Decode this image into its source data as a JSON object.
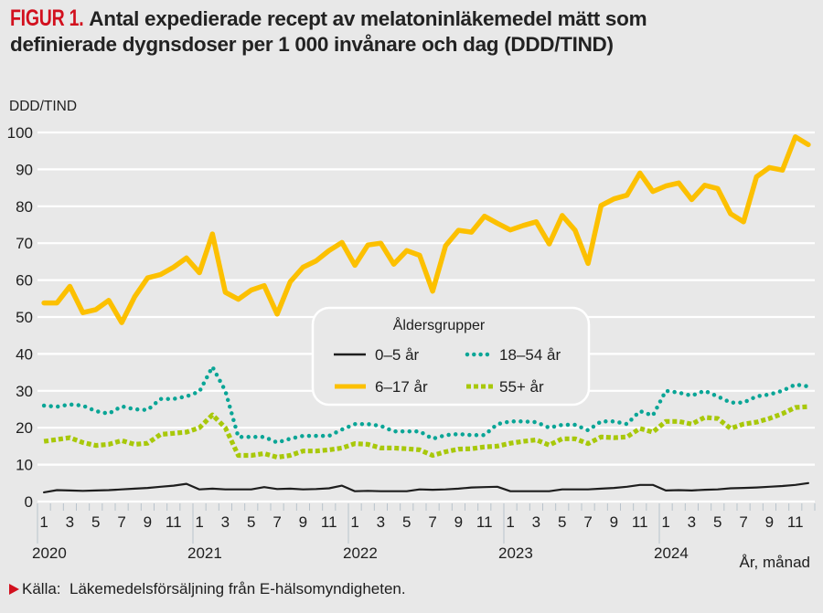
{
  "figure": {
    "label": "FIGUR 1.",
    "title_line1": "Antal expedierade recept av melatoninläkemedel mätt som",
    "title_line2": "definierade dygnsdoser per 1 000 invånare och dag (DDD/TIND)",
    "source_label": "Källa:",
    "source_text": "Läkemedelsförsäljning från E-hälsomyndigheten."
  },
  "chart_data": {
    "type": "line",
    "title": "Antal expedierade recept av melatoninläkemedel mätt som definierade dygnsdoser per 1 000 invånare och dag (DDD/TIND)",
    "ylabel": "DDD/TIND",
    "xlabel": "År, månad",
    "ylim": [
      0,
      100
    ],
    "yticks": [
      0,
      10,
      20,
      30,
      40,
      50,
      60,
      70,
      80,
      90,
      100
    ],
    "grid": true,
    "years": [
      "2020",
      "2021",
      "2022",
      "2023",
      "2024"
    ],
    "month_tick_labels": [
      "1",
      "3",
      "5",
      "7",
      "9",
      "11"
    ],
    "x": [
      "2020-01",
      "2020-02",
      "2020-03",
      "2020-04",
      "2020-05",
      "2020-06",
      "2020-07",
      "2020-08",
      "2020-09",
      "2020-10",
      "2020-11",
      "2020-12",
      "2021-01",
      "2021-02",
      "2021-03",
      "2021-04",
      "2021-05",
      "2021-06",
      "2021-07",
      "2021-08",
      "2021-09",
      "2021-10",
      "2021-11",
      "2021-12",
      "2022-01",
      "2022-02",
      "2022-03",
      "2022-04",
      "2022-05",
      "2022-06",
      "2022-07",
      "2022-08",
      "2022-09",
      "2022-10",
      "2022-11",
      "2022-12",
      "2023-01",
      "2023-02",
      "2023-03",
      "2023-04",
      "2023-05",
      "2023-06",
      "2023-07",
      "2023-08",
      "2023-09",
      "2023-10",
      "2023-11",
      "2023-12",
      "2024-01",
      "2024-02",
      "2024-03",
      "2024-04",
      "2024-05",
      "2024-06",
      "2024-07",
      "2024-08",
      "2024-09",
      "2024-10",
      "2024-11",
      "2024-12"
    ],
    "legend": {
      "title": "Åldersgrupper",
      "placement": "center"
    },
    "series": [
      {
        "name": "0–5 år",
        "color": "#1e1e1e",
        "style": "solid-thin",
        "values": [
          2.5,
          3.1,
          3.0,
          2.9,
          3.0,
          3.1,
          3.3,
          3.5,
          3.7,
          4.0,
          4.3,
          4.8,
          3.3,
          3.5,
          3.3,
          3.3,
          3.3,
          3.9,
          3.4,
          3.5,
          3.3,
          3.4,
          3.6,
          4.3,
          2.8,
          2.9,
          2.8,
          2.8,
          2.8,
          3.3,
          3.2,
          3.3,
          3.5,
          3.8,
          3.9,
          4.0,
          2.8,
          2.8,
          2.8,
          2.8,
          3.3,
          3.3,
          3.3,
          3.5,
          3.7,
          4.0,
          4.5,
          4.5,
          3.0,
          3.1,
          3.0,
          3.2,
          3.3,
          3.6,
          3.7,
          3.8,
          4.0,
          4.2,
          4.5,
          5.0
        ]
      },
      {
        "name": "6–17 år",
        "color": "#fcc000",
        "style": "solid-thick",
        "values": [
          53.8,
          53.8,
          58.3,
          51.2,
          52.0,
          54.5,
          48.5,
          55.5,
          60.6,
          61.5,
          63.5,
          66.0,
          62.0,
          72.5,
          56.7,
          54.8,
          57.3,
          58.5,
          50.8,
          59.5,
          63.5,
          65.2,
          68.0,
          70.2,
          64.0,
          69.5,
          70.0,
          64.3,
          68.0,
          66.7,
          57.0,
          69.3,
          73.5,
          73.0,
          77.3,
          75.4,
          73.6,
          74.8,
          75.8,
          69.8,
          77.5,
          73.5,
          64.5,
          80.2,
          82.0,
          83.0,
          89.0,
          84.0,
          85.5,
          86.3,
          81.8,
          85.7,
          84.8,
          78.0,
          75.8,
          88.0,
          90.5,
          89.8,
          98.8,
          96.7
        ]
      },
      {
        "name": "18–54 år",
        "color": "#0aa596",
        "style": "dotted-round",
        "values": [
          26.0,
          25.7,
          26.3,
          26.0,
          24.5,
          23.8,
          25.8,
          25.0,
          24.8,
          27.8,
          27.8,
          28.5,
          29.8,
          36.5,
          30.0,
          17.5,
          17.5,
          17.5,
          16.0,
          17.0,
          17.8,
          17.8,
          17.8,
          19.5,
          21.0,
          21.0,
          20.5,
          19.0,
          19.0,
          19.0,
          17.0,
          18.0,
          18.3,
          18.0,
          18.0,
          21.0,
          21.7,
          21.7,
          21.5,
          20.0,
          20.8,
          20.8,
          19.3,
          21.7,
          21.7,
          21.0,
          24.5,
          23.3,
          30.0,
          29.5,
          28.7,
          30.0,
          28.5,
          26.8,
          26.8,
          28.5,
          29.0,
          30.0,
          31.7,
          31.2
        ]
      },
      {
        "name": "55+ år",
        "color": "#a8c80a",
        "style": "dotted-square",
        "values": [
          16.3,
          16.8,
          17.3,
          16.0,
          15.2,
          15.5,
          16.5,
          15.5,
          15.8,
          18.2,
          18.5,
          18.8,
          20.0,
          23.5,
          20.0,
          12.5,
          12.5,
          13.0,
          12.0,
          12.5,
          13.7,
          13.7,
          14.0,
          14.5,
          15.7,
          15.5,
          14.5,
          14.5,
          14.3,
          14.0,
          12.5,
          13.5,
          14.2,
          14.3,
          14.8,
          15.0,
          15.8,
          16.3,
          16.7,
          15.3,
          17.0,
          17.0,
          15.7,
          17.5,
          17.3,
          17.5,
          19.8,
          18.8,
          21.7,
          21.7,
          21.0,
          22.8,
          22.5,
          19.8,
          21.0,
          21.5,
          22.5,
          23.8,
          25.5,
          25.7
        ]
      }
    ]
  }
}
